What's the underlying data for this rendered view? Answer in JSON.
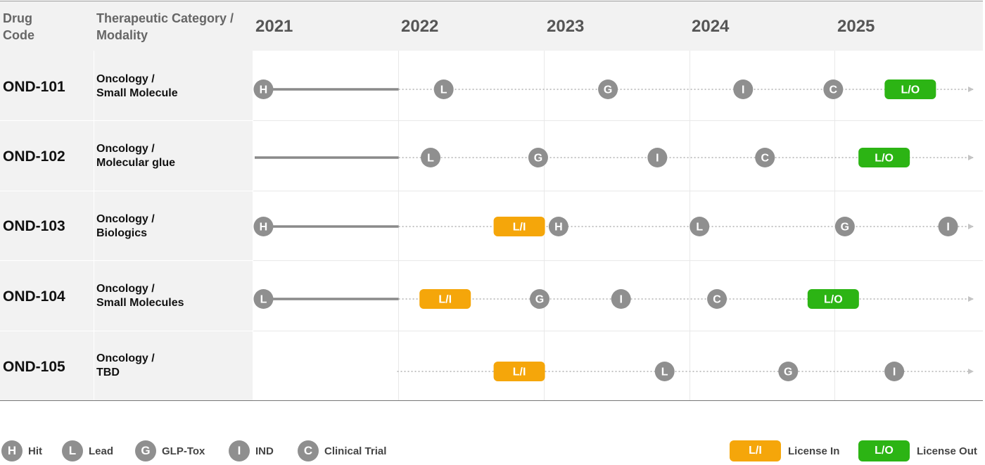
{
  "header": {
    "drug_code_label": "Drug Code",
    "category_label": "Therapeutic Category / Modality",
    "years": [
      "2021",
      "2022",
      "2023",
      "2024",
      "2025"
    ]
  },
  "rows": [
    {
      "code": "OND-101",
      "category_line1": "Oncology /",
      "category_line2": "Small Molecule",
      "solid_start": 2021.0,
      "solid_end": 2022.0,
      "dotted_end": 2026.0,
      "milestones": [
        {
          "kind": "circle",
          "label": "H",
          "year": 2021.07
        },
        {
          "kind": "circle",
          "label": "L",
          "year": 2022.31
        },
        {
          "kind": "circle",
          "label": "G",
          "year": 2023.44
        },
        {
          "kind": "circle",
          "label": "I",
          "year": 2024.37
        },
        {
          "kind": "circle",
          "label": "C",
          "year": 2024.99
        },
        {
          "kind": "pill",
          "label": "L/O",
          "type": "out",
          "year": 2025.52
        }
      ]
    },
    {
      "code": "OND-102",
      "category_line1": "Oncology /",
      "category_line2": "Molecular glue",
      "solid_start": 2021.0,
      "solid_end": 2022.0,
      "dotted_end": 2026.0,
      "milestones": [
        {
          "kind": "circle",
          "label": "L",
          "year": 2022.22
        },
        {
          "kind": "circle",
          "label": "G",
          "year": 2022.96
        },
        {
          "kind": "circle",
          "label": "I",
          "year": 2023.78
        },
        {
          "kind": "circle",
          "label": "C",
          "year": 2024.52
        },
        {
          "kind": "pill",
          "label": "L/O",
          "type": "out",
          "year": 2025.34
        }
      ]
    },
    {
      "code": "OND-103",
      "category_line1": "Oncology /",
      "category_line2": "Biologics",
      "solid_start": 2021.0,
      "solid_end": 2022.0,
      "dotted_end": 2026.0,
      "milestones": [
        {
          "kind": "circle",
          "label": "H",
          "year": 2021.07
        },
        {
          "kind": "pill",
          "label": "L/I",
          "type": "in",
          "year": 2022.83
        },
        {
          "kind": "circle",
          "label": "H",
          "year": 2023.1
        },
        {
          "kind": "circle",
          "label": "L",
          "year": 2024.07
        },
        {
          "kind": "circle",
          "label": "G",
          "year": 2025.07
        },
        {
          "kind": "circle",
          "label": "I",
          "year": 2025.78
        }
      ]
    },
    {
      "code": "OND-104",
      "category_line1": "Oncology /",
      "category_line2": "Small Molecules",
      "solid_start": 2021.0,
      "solid_end": 2022.0,
      "dotted_end": 2026.0,
      "milestones": [
        {
          "kind": "circle",
          "label": "L",
          "year": 2021.07
        },
        {
          "kind": "pill",
          "label": "L/I",
          "type": "in",
          "year": 2022.32
        },
        {
          "kind": "circle",
          "label": "G",
          "year": 2022.97
        },
        {
          "kind": "circle",
          "label": "I",
          "year": 2023.53
        },
        {
          "kind": "circle",
          "label": "C",
          "year": 2024.19
        },
        {
          "kind": "pill",
          "label": "L/O",
          "type": "out",
          "year": 2024.99
        }
      ]
    },
    {
      "code": "OND-105",
      "category_line1": "Oncology /",
      "category_line2": "TBD",
      "solid_start": null,
      "solid_end": null,
      "dotted_start": 2021.99,
      "dotted_end": 2026.0,
      "milestones": [
        {
          "kind": "pill",
          "label": "L/I",
          "type": "in",
          "year": 2022.83
        },
        {
          "kind": "circle",
          "label": "L",
          "year": 2023.83
        },
        {
          "kind": "circle",
          "label": "G",
          "year": 2024.68
        },
        {
          "kind": "circle",
          "label": "I",
          "year": 2025.41
        }
      ]
    }
  ],
  "legend": {
    "circles": [
      {
        "letter": "H",
        "label": "Hit"
      },
      {
        "letter": "L",
        "label": "Lead"
      },
      {
        "letter": "G",
        "label": "GLP-Tox"
      },
      {
        "letter": "I",
        "label": "IND"
      },
      {
        "letter": "C",
        "label": "Clinical Trial"
      }
    ],
    "pills": [
      {
        "text": "L/I",
        "label": "License In",
        "type": "in"
      },
      {
        "text": "L/O",
        "label": "License Out",
        "type": "out"
      }
    ]
  },
  "colors": {
    "circle": "#8f8f8f",
    "solid_line": "#8a8a8a",
    "dotted_line": "#c4c4c4",
    "license_in": "#f5a60a",
    "license_out": "#2cb414"
  }
}
